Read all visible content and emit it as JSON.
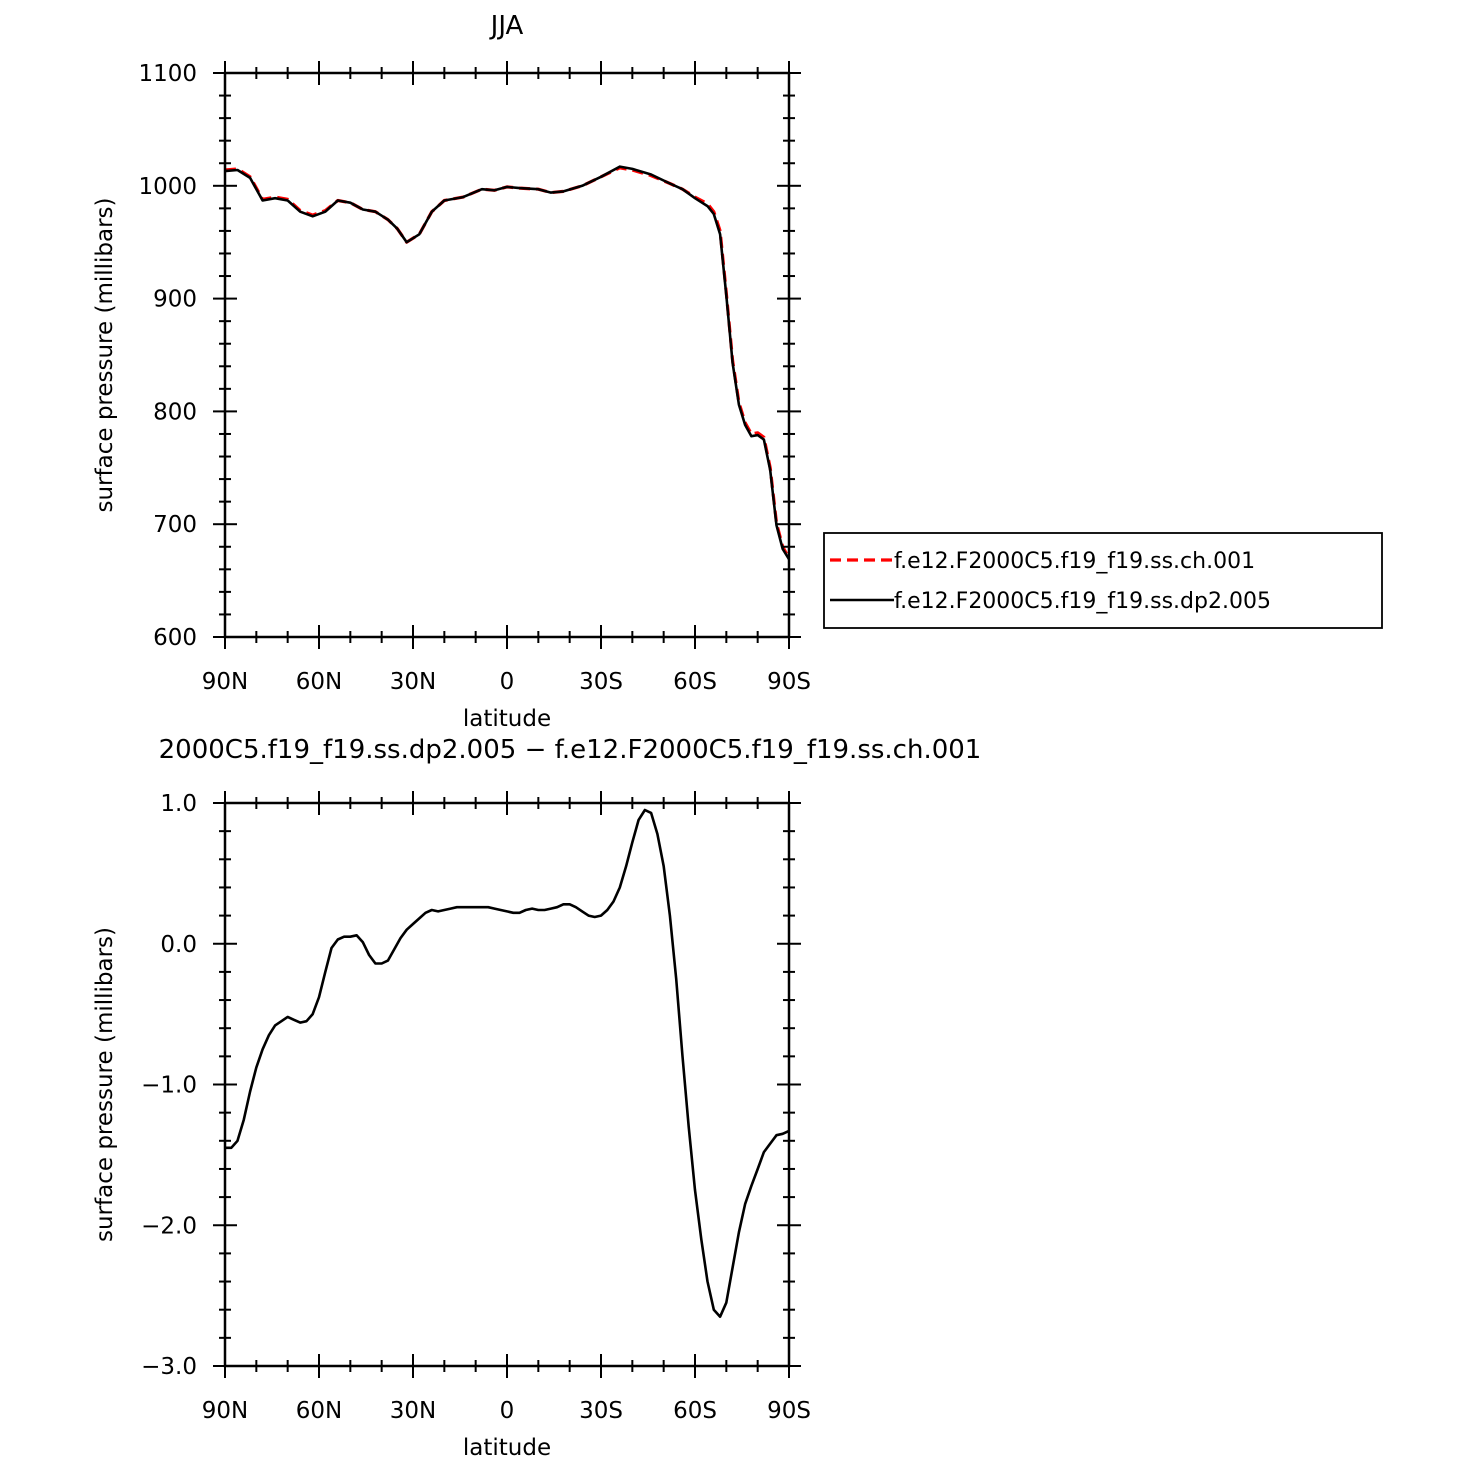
{
  "chart_data": [
    {
      "type": "line",
      "title": "JJA",
      "xlabel": "latitude",
      "ylabel": "surface pressure (millibars)",
      "xlim": [
        90,
        -90
      ],
      "ylim": [
        600,
        1100
      ],
      "xticks": [
        {
          "value": 90,
          "label": "90N"
        },
        {
          "value": 60,
          "label": "60N"
        },
        {
          "value": 30,
          "label": "30N"
        },
        {
          "value": 0,
          "label": "0"
        },
        {
          "value": -30,
          "label": "30S"
        },
        {
          "value": -60,
          "label": "60S"
        },
        {
          "value": -90,
          "label": "90S"
        }
      ],
      "yticks": [
        {
          "value": 1100,
          "label": "1100"
        },
        {
          "value": 1000,
          "label": "1000"
        },
        {
          "value": 900,
          "label": "900"
        },
        {
          "value": 800,
          "label": "800"
        },
        {
          "value": 700,
          "label": "700"
        },
        {
          "value": 600,
          "label": "600"
        }
      ],
      "legend": {
        "position": "right"
      },
      "series": [
        {
          "name": "f.e12.F2000C5.f19_f19.ss.ch.001",
          "color": "#ff0000",
          "dash": "dashed",
          "x": [
            90,
            86,
            82,
            78,
            74,
            70,
            66,
            62,
            58,
            54,
            50,
            46,
            42,
            38,
            35,
            32,
            28,
            24,
            20,
            14,
            8,
            4,
            0,
            -4,
            -10,
            -14,
            -18,
            -24,
            -30,
            -36,
            -40,
            -46,
            -52,
            -56,
            -60,
            -64,
            -66,
            -68,
            -70,
            -72,
            -74,
            -76,
            -78,
            -80,
            -82,
            -84,
            -86,
            -88,
            -90
          ],
          "y": [
            1014,
            1015,
            1008,
            988,
            990,
            988,
            978,
            974,
            978,
            987,
            985,
            979,
            977,
            970,
            962,
            950,
            957,
            977,
            987,
            990,
            997,
            996,
            999,
            998,
            997,
            994,
            995,
            1000,
            1008,
            1016,
            1014,
            1009,
            1002,
            997,
            990,
            984,
            977,
            960,
            905,
            845,
            808,
            790,
            780,
            781,
            777,
            750,
            701,
            680,
            670
          ]
        },
        {
          "name": "f.e12.F2000C5.f19_f19.ss.dp2.005",
          "color": "#000000",
          "dash": "solid",
          "x": [
            90,
            86,
            82,
            78,
            74,
            70,
            66,
            62,
            58,
            54,
            50,
            46,
            42,
            38,
            35,
            32,
            28,
            24,
            20,
            14,
            8,
            4,
            0,
            -4,
            -10,
            -14,
            -18,
            -24,
            -30,
            -36,
            -40,
            -46,
            -52,
            -56,
            -60,
            -64,
            -66,
            -68,
            -70,
            -72,
            -74,
            -76,
            -78,
            -80,
            -82,
            -84,
            -86,
            -88,
            -90
          ],
          "y": [
            1013,
            1014,
            1007,
            987,
            989,
            987,
            977,
            973,
            977,
            987,
            985,
            979,
            977,
            970,
            962,
            950,
            957,
            977,
            987,
            990,
            997,
            996,
            999,
            998,
            997,
            994,
            995,
            1000,
            1008,
            1017,
            1015,
            1010,
            1002,
            997,
            989,
            982,
            975,
            957,
            903,
            843,
            806,
            788,
            778,
            779,
            775,
            748,
            699,
            678,
            669
          ]
        }
      ]
    },
    {
      "type": "line",
      "title": "2000C5.f19_f19.ss.dp2.005 − f.e12.F2000C5.f19_f19.ss.ch.001",
      "xlabel": "latitude",
      "ylabel": "surface pressure (millibars)",
      "xlim": [
        90,
        -90
      ],
      "ylim": [
        -3.0,
        1.0
      ],
      "xticks": [
        {
          "value": 90,
          "label": "90N"
        },
        {
          "value": 60,
          "label": "60N"
        },
        {
          "value": 30,
          "label": "30N"
        },
        {
          "value": 0,
          "label": "0"
        },
        {
          "value": -30,
          "label": "30S"
        },
        {
          "value": -60,
          "label": "60S"
        },
        {
          "value": -90,
          "label": "90S"
        }
      ],
      "yticks": [
        {
          "value": 1.0,
          "label": "1.0"
        },
        {
          "value": 0.0,
          "label": "0.0"
        },
        {
          "value": -1.0,
          "label": "−1.0"
        },
        {
          "value": -2.0,
          "label": "−2.0"
        },
        {
          "value": -3.0,
          "label": "−3.0"
        }
      ],
      "series": [
        {
          "color": "#000000",
          "dash": "solid",
          "x": [
            90,
            88,
            86,
            84,
            82,
            80,
            78,
            76,
            74,
            72,
            70,
            68,
            66,
            64,
            62,
            60,
            58,
            56,
            54,
            52,
            50,
            48,
            46,
            44,
            42,
            40,
            38,
            36,
            34,
            32,
            30,
            28,
            26,
            24,
            22,
            20,
            18,
            16,
            14,
            12,
            10,
            8,
            6,
            4,
            2,
            0,
            -2,
            -4,
            -6,
            -8,
            -10,
            -12,
            -14,
            -16,
            -18,
            -20,
            -22,
            -24,
            -26,
            -28,
            -30,
            -32,
            -34,
            -36,
            -38,
            -40,
            -42,
            -44,
            -46,
            -48,
            -50,
            -52,
            -54,
            -56,
            -58,
            -60,
            -62,
            -64,
            -66,
            -68,
            -70,
            -72,
            -74,
            -76,
            -78,
            -80,
            -82,
            -84,
            -86,
            -88,
            -90
          ],
          "y": [
            -1.45,
            -1.45,
            -1.4,
            -1.25,
            -1.05,
            -0.88,
            -0.75,
            -0.65,
            -0.58,
            -0.55,
            -0.52,
            -0.54,
            -0.56,
            -0.55,
            -0.5,
            -0.38,
            -0.2,
            -0.03,
            0.03,
            0.05,
            0.05,
            0.06,
            0.01,
            -0.08,
            -0.14,
            -0.14,
            -0.12,
            -0.04,
            0.04,
            0.1,
            0.14,
            0.18,
            0.22,
            0.24,
            0.23,
            0.24,
            0.25,
            0.26,
            0.26,
            0.26,
            0.26,
            0.26,
            0.26,
            0.25,
            0.24,
            0.23,
            0.22,
            0.22,
            0.24,
            0.25,
            0.24,
            0.24,
            0.25,
            0.26,
            0.28,
            0.28,
            0.26,
            0.23,
            0.2,
            0.19,
            0.2,
            0.24,
            0.3,
            0.4,
            0.55,
            0.72,
            0.88,
            0.95,
            0.93,
            0.78,
            0.55,
            0.2,
            -0.25,
            -0.8,
            -1.3,
            -1.75,
            -2.1,
            -2.4,
            -2.6,
            -2.65,
            -2.55,
            -2.3,
            -2.05,
            -1.85,
            -1.72,
            -1.6,
            -1.48,
            -1.42,
            -1.36,
            -1.35,
            -1.33
          ]
        }
      ]
    }
  ]
}
